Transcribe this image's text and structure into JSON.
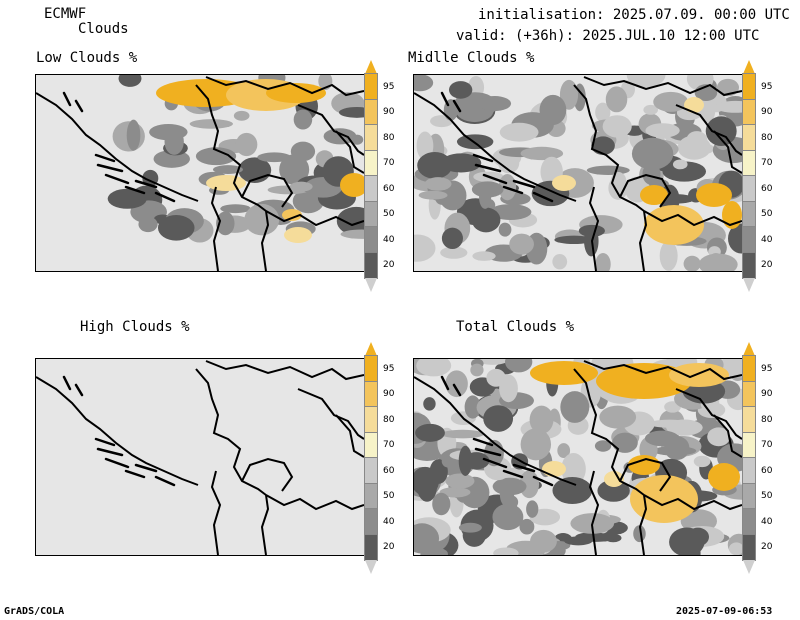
{
  "header": {
    "model": "ECMWF",
    "product": "Clouds",
    "init_line": "initialisation: 2025.07.09. 00:00 UTC",
    "valid_line": "valid: (+36h): 2025.JUL.10 12:00 UTC"
  },
  "panels": [
    {
      "title": "Low Clouds %",
      "cover": "low"
    },
    {
      "title": "Midlle Clouds %",
      "cover": "mid"
    },
    {
      "title": "High Clouds %",
      "cover": "none"
    },
    {
      "title": "Total Clouds %",
      "cover": "total"
    }
  ],
  "colorbar": {
    "labels": [
      "95",
      "90",
      "80",
      "70",
      "60",
      "50",
      "40",
      "20"
    ],
    "colors": {
      "95": "#f0b020",
      "90": "#f3c45c",
      "80": "#f5dc9a",
      "70": "#f7f3c8",
      "60": "#c9c9c9",
      "50": "#a9a9a9",
      "40": "#8c8c8c",
      "20": "#5a5a5a",
      "background": "#e6e6e6",
      "under": "#ffffff"
    }
  },
  "footer": {
    "left": "GrADS/COLA",
    "right": "2025-07-09-06:53"
  }
}
